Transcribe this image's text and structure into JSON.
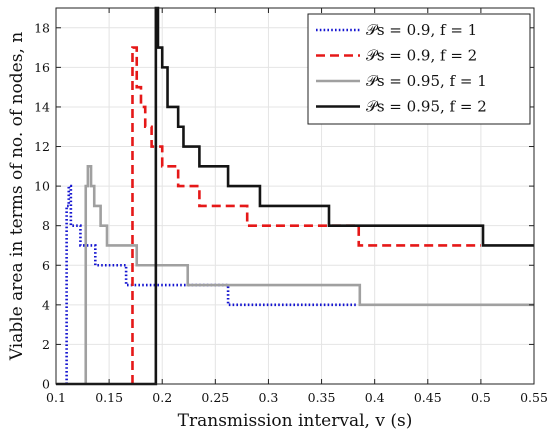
{
  "chart_data": {
    "type": "line",
    "title": "",
    "xlabel": "Transmission interval, v (s)",
    "ylabel": "Viable area in terms of no. of nodes, n",
    "xlim": [
      0.1,
      0.55
    ],
    "ylim": [
      0,
      19
    ],
    "xticks": [
      "0.1",
      "0.15",
      "0.2",
      "0.25",
      "0.3",
      "0.35",
      "0.4",
      "0.45",
      "0.5",
      "0.55"
    ],
    "yticks": [
      "0",
      "2",
      "4",
      "6",
      "8",
      "10",
      "12",
      "14",
      "16",
      "18"
    ],
    "xtick_values": [
      0.1,
      0.15,
      0.2,
      0.25,
      0.3,
      0.35,
      0.4,
      0.45,
      0.5,
      0.55
    ],
    "ytick_values": [
      0,
      2,
      4,
      6,
      8,
      10,
      12,
      14,
      16,
      18
    ],
    "grid": true,
    "legend_position": "top-right",
    "series": [
      {
        "name": "Ps = 0.9, f = 1",
        "legend_label": "𝒫s = 0.9, f = 1",
        "color": "#1515d0",
        "style": "dotted",
        "x": [
          0.11,
          0.11,
          0.112,
          0.112,
          0.114,
          0.114,
          0.118,
          0.118,
          0.123,
          0.123,
          0.13,
          0.13,
          0.137,
          0.137,
          0.166,
          0.166,
          0.17,
          0.17,
          0.175,
          0.175,
          0.262,
          0.262,
          0.384
        ],
        "y": [
          0,
          9,
          9,
          10,
          10,
          8,
          8,
          8,
          8,
          7,
          7,
          7,
          7,
          6,
          6,
          5,
          5,
          5,
          5,
          5,
          5,
          4,
          4
        ]
      },
      {
        "name": "Ps = 0.9, f = 2",
        "legend_label": "𝒫s = 0.9, f = 2",
        "color": "#e51818",
        "style": "dashed",
        "x": [
          0.172,
          0.172,
          0.176,
          0.176,
          0.18,
          0.18,
          0.184,
          0.184,
          0.19,
          0.19,
          0.2,
          0.2,
          0.21,
          0.21,
          0.215,
          0.215,
          0.235,
          0.235,
          0.25,
          0.25,
          0.28,
          0.28,
          0.29,
          0.29,
          0.32,
          0.32,
          0.335,
          0.335,
          0.385,
          0.385,
          0.5
        ],
        "y": [
          0,
          17,
          17,
          15,
          15,
          14,
          14,
          13,
          13,
          12,
          12,
          11,
          11,
          11,
          11,
          10,
          10,
          9,
          9,
          9,
          9,
          8,
          8,
          8,
          8,
          8,
          8,
          8,
          8,
          7,
          7
        ]
      },
      {
        "name": "Ps = 0.95, f = 1",
        "legend_label": "𝒫s = 0.95, f = 1",
        "color": "#a0a0a0",
        "style": "solid",
        "x": [
          0.128,
          0.128,
          0.13,
          0.13,
          0.133,
          0.133,
          0.136,
          0.136,
          0.139,
          0.139,
          0.142,
          0.142,
          0.148,
          0.148,
          0.163,
          0.163,
          0.176,
          0.176,
          0.224,
          0.224,
          0.386,
          0.386,
          0.55
        ],
        "y": [
          0,
          10,
          10,
          11,
          11,
          10,
          10,
          9,
          9,
          9,
          9,
          8,
          8,
          7,
          7,
          7,
          7,
          6,
          6,
          5,
          5,
          4,
          4
        ]
      },
      {
        "name": "Ps = 0.95, f = 2",
        "legend_label": "𝒫s = 0.95, f = 2",
        "color": "#141414",
        "style": "solid",
        "x": [
          0.1,
          0.194,
          0.194,
          0.196,
          0.196,
          0.2,
          0.2,
          0.205,
          0.205,
          0.21,
          0.21,
          0.215,
          0.215,
          0.22,
          0.22,
          0.235,
          0.235,
          0.25,
          0.25,
          0.262,
          0.262,
          0.292,
          0.292,
          0.357,
          0.357,
          0.502,
          0.502,
          0.55
        ],
        "y": [
          0,
          0,
          19,
          19,
          17,
          17,
          16,
          16,
          14,
          14,
          14,
          14,
          13,
          13,
          12,
          12,
          11,
          11,
          11,
          11,
          10,
          10,
          9,
          9,
          8,
          8,
          7,
          7
        ]
      }
    ]
  }
}
